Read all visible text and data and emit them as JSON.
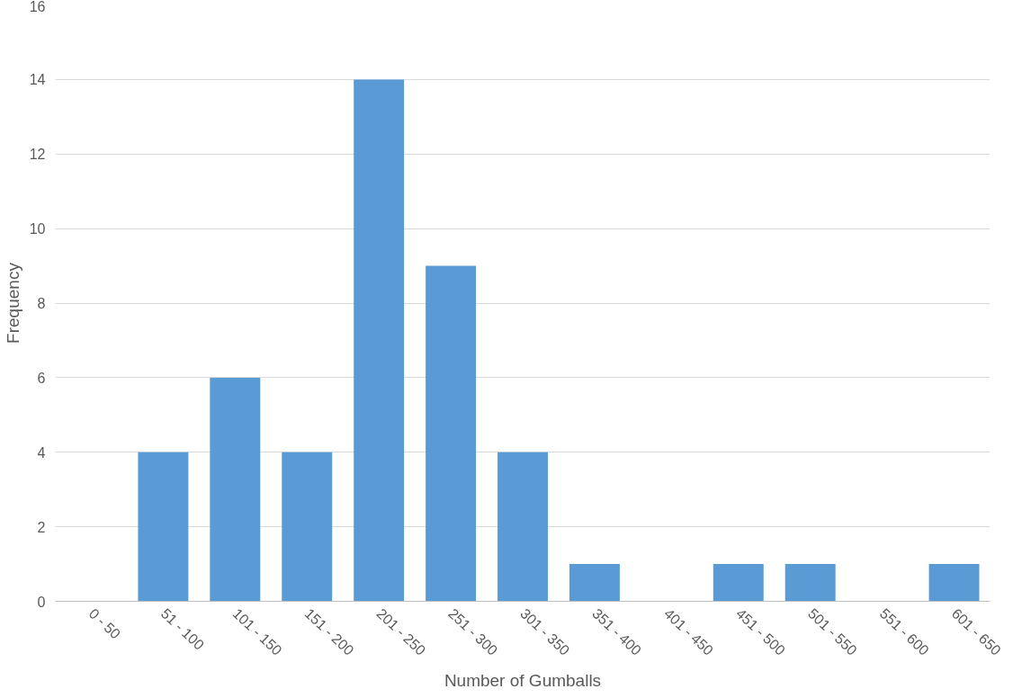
{
  "chart_data": {
    "type": "bar",
    "xlabel": "Number of Gumballs",
    "ylabel": "Frequency",
    "categories": [
      "0 - 50",
      "51 - 100",
      "101 - 150",
      "151 - 200",
      "201 - 250",
      "251 - 300",
      "301 - 350",
      "351 - 400",
      "401 - 450",
      "451 - 500",
      "501 - 550",
      "551 - 600",
      "601 - 650"
    ],
    "values": [
      0,
      4,
      6,
      4,
      14,
      9,
      4,
      1,
      0,
      1,
      1,
      0,
      1
    ],
    "color": "#5b9bd5",
    "ylim": [
      0,
      16
    ],
    "yticks": [
      0,
      2,
      4,
      6,
      8,
      10,
      12,
      14,
      16
    ],
    "grid": "y"
  }
}
